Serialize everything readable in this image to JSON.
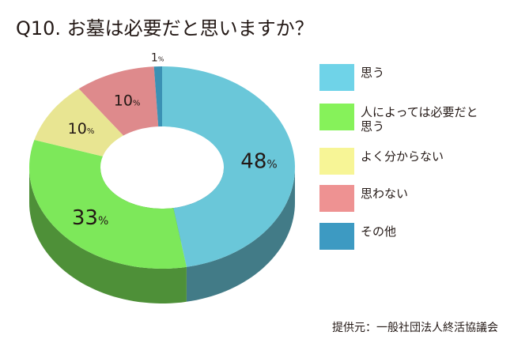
{
  "title": "Q10.  お墓は必要だと思いますか？",
  "source": "提供元：一般社団法人終活協議会",
  "chart_data": {
    "type": "pie",
    "variant": "3d-donut",
    "title": "Q10.  お墓は必要だと思いますか？",
    "unit": "%",
    "slices": [
      {
        "label": "思う",
        "value": 48,
        "color": "#6ac7d9"
      },
      {
        "label": "人によっては必要だと思う",
        "value": 33,
        "color": "#7de85a"
      },
      {
        "label": "よく分からない",
        "value": 10,
        "color": "#e8e592"
      },
      {
        "label": "思わない",
        "value": 10,
        "color": "#de8a8c"
      },
      {
        "label": "その他",
        "value": 1,
        "color": "#3b91b4"
      }
    ],
    "legend_position": "right"
  },
  "legend": {
    "items": [
      {
        "label": "思う",
        "color": "#6fd3e8"
      },
      {
        "label": "人によっては必要だと\n思う",
        "color": "#86f25a"
      },
      {
        "label": "よく分からない",
        "color": "#f7f596"
      },
      {
        "label": "思わない",
        "color": "#ee9292"
      },
      {
        "label": "その他",
        "color": "#3d9ac2"
      }
    ]
  }
}
